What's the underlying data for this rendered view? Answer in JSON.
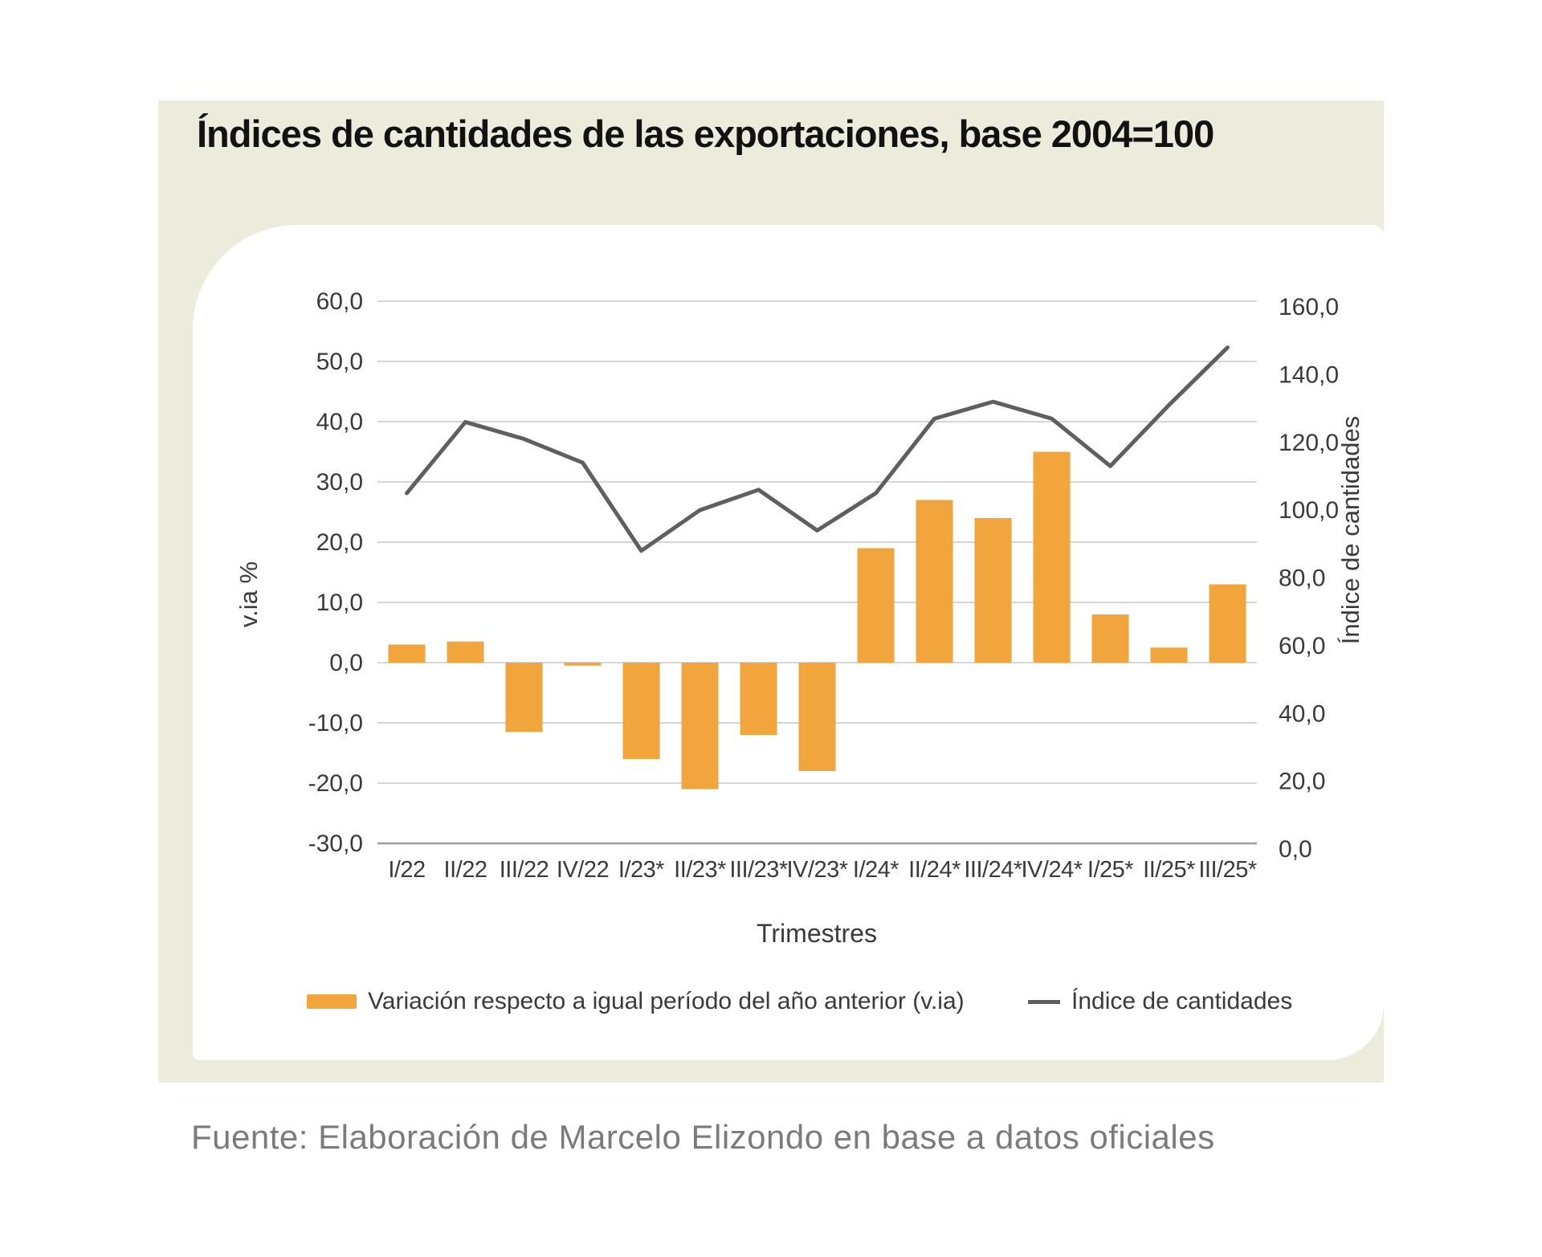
{
  "title": "Índices de cantidades de las exportaciones, base 2004=100",
  "footer": "Fuente: Elaboración de Marcelo Elizondo en base a datos oficiales",
  "colors": {
    "panel": "#ECEBDC",
    "bar": "#F2A53C",
    "line": "#5F5F5F",
    "grid": "#C8C8C8",
    "axis_line": "#9E9E9E",
    "axis_text": "#3A3A3A",
    "title_text": "#121212",
    "footer_text": "#7B7B7B"
  },
  "chart_data": {
    "type": "bar+line",
    "title": "Índices de cantidades de las exportaciones, base 2004=100",
    "categories": [
      "I/22",
      "II/22",
      "III/22",
      "IV/22",
      "I/23*",
      "II/23*",
      "III/23*",
      "IV/23*",
      "I/24*",
      "II/24*",
      "III/24*",
      "IV/24*",
      "I/25*",
      "II/25*",
      "III/25*"
    ],
    "series": [
      {
        "name": "Variación respecto a igual período del año anterior (v.ia)",
        "type": "bar",
        "axis": "left",
        "values": [
          3.0,
          3.5,
          -11.5,
          -0.5,
          -16.0,
          -21.0,
          -12.0,
          -18.0,
          19.0,
          27.0,
          24.0,
          35.0,
          8.0,
          2.5,
          13.0
        ]
      },
      {
        "name": "Índice de cantidades",
        "type": "line",
        "axis": "right",
        "values": [
          105,
          126,
          121,
          114,
          88,
          100,
          106,
          94,
          105,
          127,
          132,
          127,
          113,
          131,
          148
        ]
      }
    ],
    "left_axis": {
      "title": "v.ia %",
      "min": -30,
      "max": 60,
      "ticks": [
        "60,0",
        "50,0",
        "40,0",
        "30,0",
        "20,0",
        "10,0",
        "0,0",
        "-10,0",
        "-20,0",
        "-30,0"
      ]
    },
    "right_axis": {
      "title": "Índice de cantidades",
      "min": 0,
      "max": 160,
      "ticks": [
        "160,0",
        "140,0",
        "120,0",
        "100,0",
        "80,0",
        "60,0",
        "40,0",
        "20,0",
        "0,0"
      ]
    },
    "xlabel": "Trimestres",
    "grid": true,
    "legend_position": "bottom"
  },
  "legend": {
    "bar_label": "Variación respecto a igual período del año anterior (v.ia)",
    "line_label": "Índice de cantidades"
  }
}
